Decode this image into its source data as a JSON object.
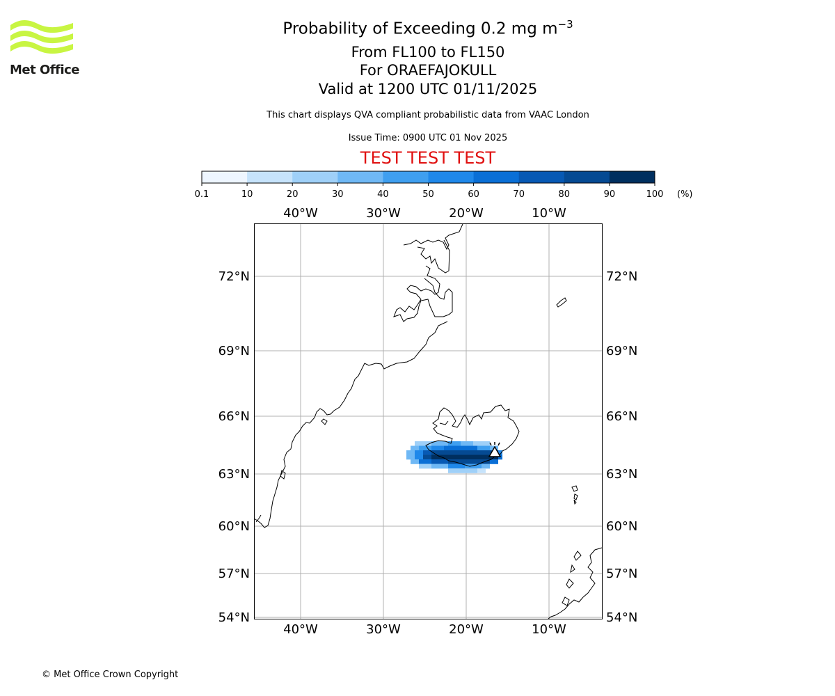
{
  "brand": {
    "name": "Met Office",
    "logo_color": "#c8f542",
    "copyright": "© Met Office Crown Copyright"
  },
  "header": {
    "title_prefix": "Probability of Exceeding 0.2 mg m",
    "title_superscript": "−3",
    "levels": "From FL100 to FL150",
    "volcano": "For ORAEFAJOKULL",
    "valid": "Valid at 1200 UTC 01/11/2025",
    "subtitle": "This chart displays QVA compliant probabilistic data from VAAC London",
    "issue_time": "Issue Time: 0900 UTC 01 Nov 2025",
    "test_banner": "TEST TEST TEST"
  },
  "colorbar": {
    "unit": "(%)",
    "ticks": [
      "0.1",
      "10",
      "20",
      "30",
      "40",
      "50",
      "60",
      "70",
      "80",
      "90",
      "100"
    ],
    "colors": [
      "#eef6ff",
      "#c6e3fb",
      "#9fd0f8",
      "#6fb8f5",
      "#3f9ff0",
      "#1f88ea",
      "#0a6fd6",
      "#0759b4",
      "#054a93",
      "#002f5f"
    ]
  },
  "map": {
    "lon_labels": [
      "40°W",
      "30°W",
      "20°W",
      "10°W"
    ],
    "lat_labels": [
      "72°N",
      "69°N",
      "66°N",
      "63°N",
      "60°N",
      "57°N",
      "54°N"
    ],
    "plume_bands": [
      "0.1-10",
      "10-20",
      "20-30",
      "30-40",
      "40-50",
      "50-60",
      "60-70",
      "70-80",
      "80-90",
      "90-100"
    ]
  }
}
